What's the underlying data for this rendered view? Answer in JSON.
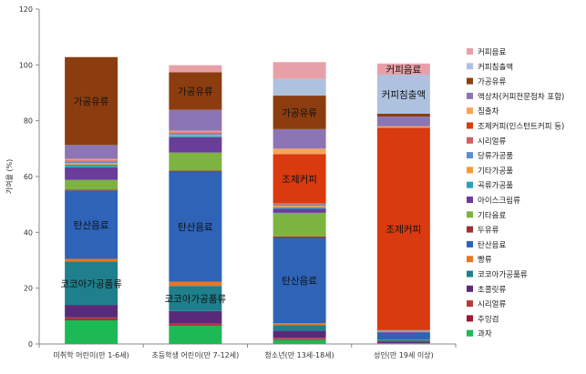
{
  "chart_data": {
    "type": "bar",
    "stacked": true,
    "title": "",
    "xlabel": "",
    "ylabel": "기여율 (%)",
    "ylim": [
      0,
      120
    ],
    "yticks": [
      0,
      20,
      40,
      60,
      80,
      100,
      120
    ],
    "grid": false,
    "legend_position": "right",
    "categories": [
      "미취학 어린이(만 1-6세)",
      "초등학생 어린이(만 7-12세)",
      "청소년(만 13세-18세)",
      "성인(만 19세 이상)"
    ],
    "series": [
      {
        "name": "과자",
        "color": "#1db954",
        "values": [
          8.5,
          6.5,
          1.5,
          0.3
        ]
      },
      {
        "name": "추잉검",
        "color": "#a0182c",
        "values": [
          0.5,
          0.3,
          0.2,
          0
        ]
      },
      {
        "name": "시리얼류",
        "color": "#b73a3a",
        "values": [
          0.5,
          0.5,
          0.5,
          0
        ]
      },
      {
        "name": "초콜릿류",
        "color": "#5a2a7a",
        "values": [
          4.5,
          4.5,
          2.5,
          0.5
        ]
      },
      {
        "name": "코코아가공품류",
        "color": "#1f7f8c",
        "values": [
          15.5,
          9.0,
          2.0,
          0.5
        ]
      },
      {
        "name": "빵류",
        "color": "#e87722",
        "values": [
          1.0,
          1.5,
          0.8,
          0.2
        ]
      },
      {
        "name": "탄산음료",
        "color": "#2e63b8",
        "values": [
          24.5,
          39.5,
          30.5,
          2.5
        ]
      },
      {
        "name": "두유류",
        "color": "#a03030",
        "values": [
          0.3,
          0.3,
          0.5,
          0
        ]
      },
      {
        "name": "기타음료",
        "color": "#7db340",
        "values": [
          3.5,
          6.5,
          8.5,
          0
        ]
      },
      {
        "name": "아이스크림류",
        "color": "#6a3d9a",
        "values": [
          4.5,
          5.5,
          1.5,
          0.3
        ]
      },
      {
        "name": "곡류가공품",
        "color": "#2aa3b8",
        "values": [
          1.0,
          0.5,
          0.5,
          0.2
        ]
      },
      {
        "name": "기타가공품",
        "color": "#f39c34",
        "values": [
          0.5,
          0.3,
          0.5,
          0.2
        ]
      },
      {
        "name": "당류가공품",
        "color": "#5b8fd0",
        "values": [
          0.5,
          0.5,
          0.5,
          0.2
        ]
      },
      {
        "name": "시리얼류",
        "color": "#d06060",
        "values": [
          0.5,
          0.5,
          0.5,
          0.1
        ]
      },
      {
        "name": "조제커피(인스턴트커피 등)",
        "color": "#d93a0f",
        "values": [
          0,
          0,
          17.5,
          72.5
        ]
      },
      {
        "name": "침출차",
        "color": "#f7a35c",
        "values": [
          0.5,
          0.5,
          2.0,
          0.5
        ]
      },
      {
        "name": "액상차(커피전문점차 포함)",
        "color": "#8c75b5",
        "values": [
          5.0,
          7.5,
          7.0,
          3.5
        ]
      },
      {
        "name": "가공유류",
        "color": "#8c3d0f",
        "values": [
          31.5,
          13.5,
          12.0,
          1.0
        ]
      },
      {
        "name": "커피침출액",
        "color": "#aec2e0",
        "values": [
          0,
          0,
          6.0,
          14.0
        ]
      },
      {
        "name": "커피음료",
        "color": "#e8a0a8",
        "values": [
          0,
          2.5,
          6.0,
          4.0
        ]
      }
    ],
    "data_labels": [
      {
        "category": 0,
        "series": "가공유류",
        "text": "가공유류"
      },
      {
        "category": 0,
        "series": "탄산음료",
        "text": "탄산음료"
      },
      {
        "category": 0,
        "series": "코코아가공품류",
        "text": "코코아가공품류"
      },
      {
        "category": 1,
        "series": "가공유류",
        "text": "가공유류"
      },
      {
        "category": 1,
        "series": "탄산음료",
        "text": "탄산음료"
      },
      {
        "category": 1,
        "series": "코코아가공품류",
        "text": "코코아가공품류"
      },
      {
        "category": 2,
        "series": "가공유류",
        "text": "가공유류"
      },
      {
        "category": 2,
        "series": "조제커피(인스턴트커피 등)",
        "text": "조제커피"
      },
      {
        "category": 2,
        "series": "탄산음료",
        "text": "탄산음료"
      },
      {
        "category": 3,
        "series": "커피음료",
        "text": "커피음료"
      },
      {
        "category": 3,
        "series": "커피침출액",
        "text": "커피침출액"
      },
      {
        "category": 3,
        "series": "조제커피(인스턴트커피 등)",
        "text": "조제커피"
      }
    ]
  }
}
